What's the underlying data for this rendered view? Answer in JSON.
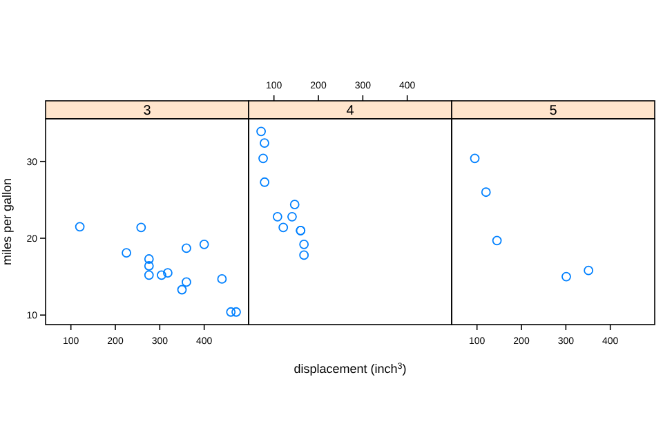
{
  "chart_data": [
    {
      "type": "scatter",
      "title": "3",
      "ylabel": "miles per gallon",
      "x": [
        258,
        360,
        225,
        360,
        275.8,
        275.8,
        275.8,
        472,
        460,
        440,
        120.1,
        318,
        304,
        350,
        400
      ],
      "series": [
        {
          "color": "#0080ff",
          "values": [
            21.4,
            18.7,
            18.1,
            14.3,
            16.4,
            17.3,
            15.2,
            10.4,
            10.4,
            14.7,
            21.5,
            15.5,
            15.2,
            13.3,
            19.2
          ]
        }
      ],
      "marker": "circle",
      "xlim": [
        43,
        500
      ],
      "xticks": [
        100,
        200,
        300,
        400
      ],
      "ylim": [
        8.76,
        35.55
      ],
      "yticks": [
        10,
        20,
        30
      ]
    },
    {
      "type": "scatter",
      "title": "4",
      "xlabel": "displacement (inch$^{3}$)",
      "x": [
        160,
        160,
        108,
        146.7,
        140.8,
        167.6,
        167.6,
        78.7,
        75.7,
        71.1,
        79,
        121
      ],
      "series": [
        {
          "color": "#0080ff",
          "values": [
            21,
            21,
            22.8,
            24.4,
            22.8,
            19.2,
            17.8,
            32.4,
            30.4,
            33.9,
            27.3,
            21.4
          ]
        }
      ],
      "marker": "circle",
      "xlim": [
        43,
        500
      ],
      "xticks": [
        100,
        200,
        300,
        400
      ],
      "ylim": [
        8.76,
        35.55
      ],
      "tick_labels": "x"
    },
    {
      "type": "scatter",
      "title": "5",
      "x": [
        120.3,
        95.1,
        351,
        145,
        301
      ],
      "series": [
        {
          "color": "#0080ff",
          "values": [
            26,
            30.4,
            15.8,
            19.7,
            15
          ]
        }
      ],
      "marker": "circle",
      "xlim": [
        43,
        500
      ],
      "xticks": [
        100,
        200,
        300,
        400
      ],
      "ylim": [
        8.76,
        35.55
      ],
      "tick_labels": "x"
    }
  ]
}
